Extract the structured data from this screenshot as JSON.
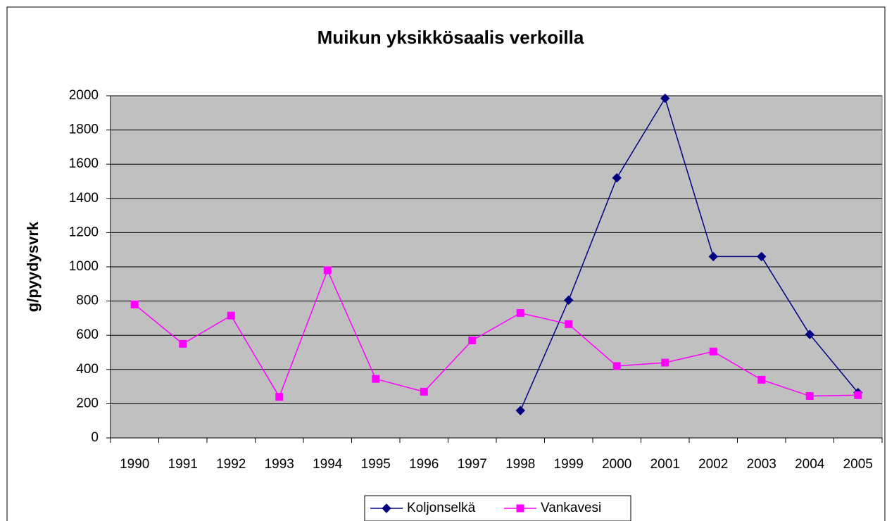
{
  "chart_data": {
    "type": "line",
    "title": "Muikun yksikkösaalis verkoilla",
    "y_label": "g/pyydysvrk",
    "categories": [
      "1990",
      "1991",
      "1992",
      "1993",
      "1994",
      "1995",
      "1996",
      "1997",
      "1998",
      "1999",
      "2000",
      "2001",
      "2002",
      "2003",
      "2004",
      "2005"
    ],
    "series": [
      {
        "name": "Koljonselkä",
        "color": "#000080",
        "marker": "diamond",
        "values": [
          null,
          null,
          null,
          null,
          null,
          null,
          null,
          null,
          160,
          805,
          1520,
          1985,
          1060,
          1060,
          605,
          265
        ]
      },
      {
        "name": "Vankavesi",
        "color": "#ff00ff",
        "marker": "square",
        "values": [
          780,
          550,
          715,
          240,
          980,
          345,
          270,
          570,
          730,
          665,
          420,
          440,
          505,
          340,
          245,
          250
        ]
      }
    ],
    "ylim": [
      0,
      2000
    ],
    "yticks": [
      0,
      200,
      400,
      600,
      800,
      1000,
      1200,
      1400,
      1600,
      1800,
      2000
    ],
    "grid": true,
    "legend": "bottom"
  }
}
